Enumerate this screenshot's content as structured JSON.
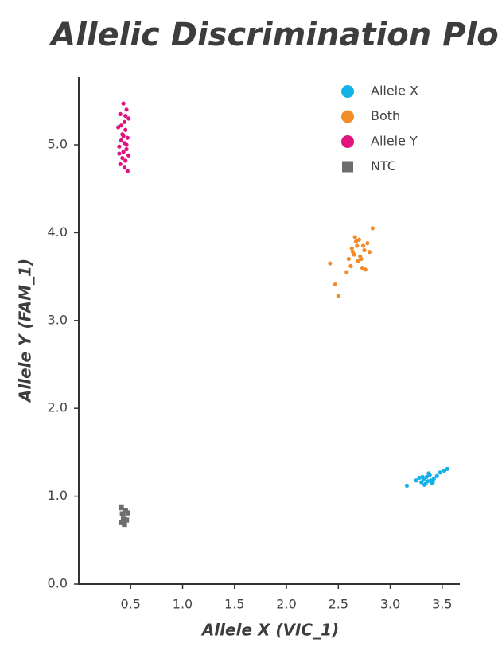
{
  "chart_data": {
    "type": "scatter",
    "title": "Allelic Discrimination Plot",
    "x_label": "Allele X (VIC_1)",
    "y_label": "Allele Y (FAM_1)",
    "xlim": [
      0,
      3.67
    ],
    "ylim": [
      0,
      5.77
    ],
    "xticks": [
      {
        "value": 0.5,
        "label": "0.5"
      },
      {
        "value": 1,
        "label": "1.0"
      },
      {
        "value": 1.5,
        "label": "1.5"
      },
      {
        "value": 2,
        "label": "2.0"
      },
      {
        "value": 2.5,
        "label": "2.5"
      },
      {
        "value": 3,
        "label": "3.0"
      },
      {
        "value": 3.5,
        "label": "3.5"
      }
    ],
    "yticks": [
      {
        "value": 0,
        "label": "0.0"
      },
      {
        "value": 1,
        "label": "1.0"
      },
      {
        "value": 2,
        "label": "2.0"
      },
      {
        "value": 3,
        "label": "3.0"
      },
      {
        "value": 4,
        "label": "4.0"
      },
      {
        "value": 5,
        "label": "5.0"
      }
    ],
    "legend": "upper right",
    "series": [
      {
        "name": "Allele X",
        "color": "#14b1e7",
        "marker": "circle",
        "x": [
          3.16,
          3.25,
          3.28,
          3.3,
          3.32,
          3.34,
          3.35,
          3.36,
          3.38,
          3.4,
          3.42,
          3.45,
          3.48,
          3.52,
          3.55,
          3.33,
          3.37,
          3.39,
          3.31,
          3.41
        ],
        "y": [
          1.12,
          1.18,
          1.21,
          1.16,
          1.19,
          1.14,
          1.22,
          1.17,
          1.24,
          1.15,
          1.2,
          1.23,
          1.27,
          1.29,
          1.31,
          1.13,
          1.26,
          1.18,
          1.22,
          1.16
        ]
      },
      {
        "name": "Both",
        "color": "#f28c28",
        "marker": "circle",
        "x": [
          2.42,
          2.47,
          2.5,
          2.58,
          2.62,
          2.65,
          2.68,
          2.7,
          2.72,
          2.75,
          2.78,
          2.8,
          2.83,
          2.66,
          2.69,
          2.73,
          2.63,
          2.71,
          2.76,
          2.6,
          2.67,
          2.74,
          2.64
        ],
        "y": [
          3.65,
          3.41,
          3.28,
          3.55,
          3.62,
          3.75,
          3.85,
          3.92,
          3.7,
          3.8,
          3.88,
          3.78,
          4.05,
          3.95,
          3.68,
          3.6,
          3.82,
          3.73,
          3.58,
          3.7,
          3.9,
          3.85,
          3.78
        ]
      },
      {
        "name": "Allele Y",
        "color": "#e0137f",
        "marker": "circle",
        "x": [
          0.43,
          0.46,
          0.4,
          0.48,
          0.44,
          0.38,
          0.45,
          0.42,
          0.47,
          0.41,
          0.44,
          0.39,
          0.46,
          0.43,
          0.48,
          0.42,
          0.45,
          0.4,
          0.44,
          0.47,
          0.41,
          0.43,
          0.46,
          0.39,
          0.45
        ],
        "y": [
          5.47,
          5.4,
          5.35,
          5.3,
          5.26,
          5.2,
          5.17,
          5.12,
          5.08,
          5.05,
          5.02,
          4.98,
          4.95,
          4.92,
          4.88,
          4.85,
          4.82,
          4.78,
          4.74,
          4.7,
          5.22,
          5.1,
          5.0,
          4.9,
          5.33
        ]
      },
      {
        "name": "NTC",
        "color": "#6e6e6e",
        "marker": "square",
        "x": [
          0.41,
          0.45,
          0.42,
          0.47,
          0.43,
          0.46,
          0.44,
          0.41
        ],
        "y": [
          0.87,
          0.84,
          0.8,
          0.81,
          0.74,
          0.73,
          0.68,
          0.7
        ]
      }
    ]
  }
}
